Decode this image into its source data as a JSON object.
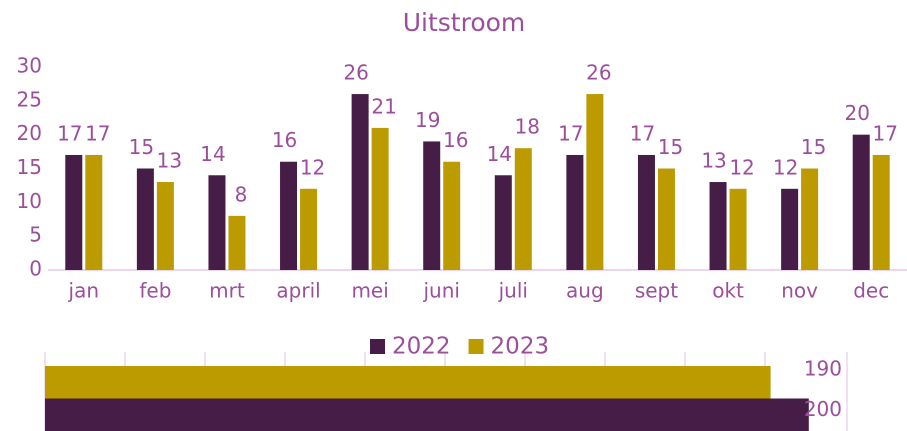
{
  "chart_data": [
    {
      "type": "bar",
      "title": "Uitstroom",
      "categories": [
        "jan",
        "feb",
        "mrt",
        "april",
        "mei",
        "juni",
        "juli",
        "aug",
        "sept",
        "okt",
        "nov",
        "dec"
      ],
      "series": [
        {
          "name": "2022",
          "color": "#461d46",
          "values": [
            17,
            15,
            14,
            16,
            26,
            19,
            14,
            17,
            17,
            13,
            12,
            20
          ]
        },
        {
          "name": "2023",
          "color": "#bc9b00",
          "values": [
            17,
            13,
            8,
            12,
            21,
            16,
            18,
            26,
            15,
            12,
            15,
            17
          ]
        }
      ],
      "ylim": [
        0,
        30
      ],
      "yticks": [
        0,
        5,
        10,
        15,
        20,
        25,
        30
      ],
      "legend": "bottom"
    },
    {
      "type": "barh",
      "values": [
        190,
        200
      ],
      "colors": [
        "#bc9b00",
        "#461d46"
      ],
      "xlim": [
        0,
        210
      ]
    }
  ]
}
